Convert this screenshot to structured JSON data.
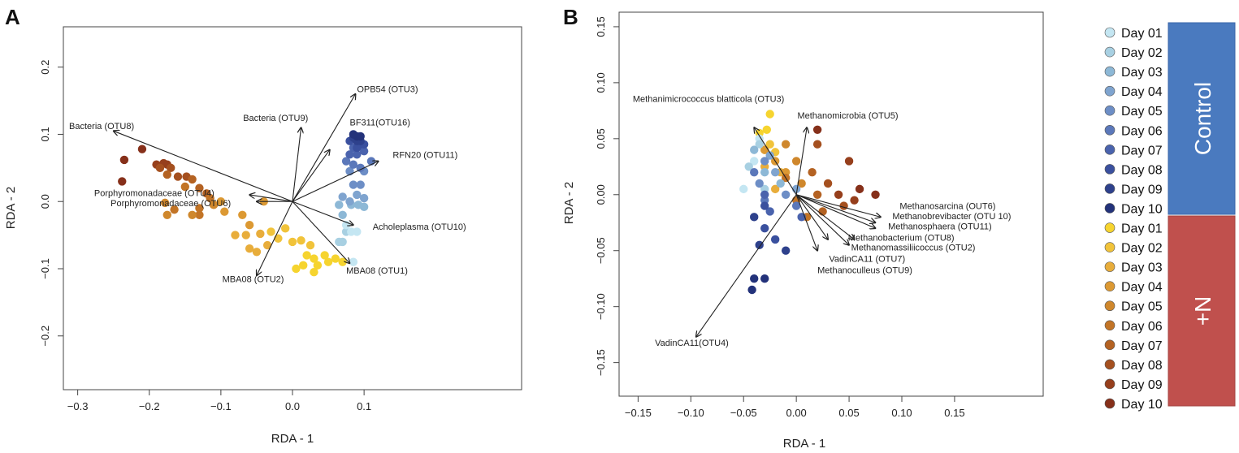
{
  "legend": {
    "days": [
      "Day 01",
      "Day 02",
      "Day 03",
      "Day 04",
      "Day 05",
      "Day 06",
      "Day 07",
      "Day 08",
      "Day 09",
      "Day 10",
      "Day 01",
      "Day 02",
      "Day 03",
      "Day 04",
      "Day 05",
      "Day 06",
      "Day 07",
      "Day 08",
      "Day 09",
      "Day 10"
    ],
    "colors": [
      "#c4e6f2",
      "#a8d0e2",
      "#8db8d6",
      "#7fa4cf",
      "#6d8ec6",
      "#5b78ba",
      "#4a63ad",
      "#3a509e",
      "#2e418c",
      "#23327a",
      "#f6d42f",
      "#f1c33a",
      "#e8ad3b",
      "#dc9933",
      "#cf872c",
      "#c27426",
      "#b46222",
      "#a5501f",
      "#963f1c",
      "#86301a"
    ],
    "groups": [
      {
        "label": "Control",
        "color": "#4a7abf"
      },
      {
        "label": "+N",
        "color": "#c0504d"
      }
    ]
  },
  "chart_data": [
    {
      "panel": "A",
      "type": "scatter",
      "xlabel": "RDA - 1",
      "ylabel": "RDA - 2",
      "xlim": [
        -0.32,
        0.32
      ],
      "ylim": [
        -0.28,
        0.26
      ],
      "xticks": [
        -0.3,
        -0.2,
        -0.1,
        0.0,
        0.1
      ],
      "xtick_labels": [
        "−0.3",
        "−0.2",
        "−0.1",
        "0.0",
        "0.1"
      ],
      "yticks": [
        -0.2,
        -0.1,
        0.0,
        0.1,
        0.2
      ],
      "ytick_labels": [
        "−0.2",
        "−0.1",
        "0.0",
        "0.1",
        "0.2"
      ],
      "arrows": [
        {
          "label": "Bacteria (OTU8)",
          "x": -0.25,
          "y": 0.105,
          "lx": -0.312,
          "ly": 0.108,
          "anchor": "start"
        },
        {
          "label": "Bacteria (OTU9)",
          "x": 0.012,
          "y": 0.11,
          "lx": -0.069,
          "ly": 0.12,
          "anchor": "start"
        },
        {
          "label": "OPB54 (OTU3)",
          "x": 0.088,
          "y": 0.16,
          "lx": 0.09,
          "ly": 0.163,
          "anchor": "start"
        },
        {
          "label": "BF311(OTU16)",
          "x": 0.052,
          "y": 0.077,
          "lx": 0.08,
          "ly": 0.113,
          "anchor": "start"
        },
        {
          "label": "RFN20 (OTU11)",
          "x": 0.12,
          "y": 0.06,
          "lx": 0.14,
          "ly": 0.065,
          "anchor": "start"
        },
        {
          "label": "Porphyromonadaceae (OTU4)",
          "x": -0.06,
          "y": 0.01,
          "lx": -0.277,
          "ly": 0.008,
          "anchor": "start"
        },
        {
          "label": "Porphyromonadaceae (OTU6)",
          "x": -0.05,
          "y": 0.0,
          "lx": -0.254,
          "ly": -0.007,
          "anchor": "start"
        },
        {
          "label": "Acholeplasma (OTU10)",
          "x": 0.085,
          "y": -0.035,
          "lx": 0.112,
          "ly": -0.042,
          "anchor": "start"
        },
        {
          "label": "MBA08 (OTU2)",
          "x": -0.05,
          "y": -0.11,
          "lx": -0.098,
          "ly": -0.12,
          "anchor": "start"
        },
        {
          "label": "MBA08 (OTU1)",
          "x": 0.08,
          "y": -0.092,
          "lx": 0.075,
          "ly": -0.107,
          "anchor": "start"
        }
      ],
      "points": [
        [
          -0.235,
          0.062,
          19
        ],
        [
          -0.21,
          0.078,
          19
        ],
        [
          -0.238,
          0.03,
          19
        ],
        [
          -0.19,
          0.055,
          18
        ],
        [
          -0.18,
          0.057,
          18
        ],
        [
          -0.175,
          0.055,
          18
        ],
        [
          -0.185,
          0.05,
          17
        ],
        [
          -0.17,
          0.05,
          17
        ],
        [
          -0.16,
          0.037,
          17
        ],
        [
          -0.148,
          0.037,
          17
        ],
        [
          -0.175,
          0.04,
          16
        ],
        [
          -0.14,
          0.033,
          16
        ],
        [
          -0.12,
          0.012,
          16
        ],
        [
          -0.13,
          0.02,
          16
        ],
        [
          -0.15,
          0.022,
          15
        ],
        [
          -0.115,
          0.005,
          15
        ],
        [
          -0.13,
          -0.01,
          15
        ],
        [
          -0.13,
          -0.02,
          15
        ],
        [
          -0.165,
          -0.012,
          15
        ],
        [
          -0.178,
          -0.002,
          14
        ],
        [
          -0.175,
          -0.02,
          14
        ],
        [
          -0.14,
          -0.02,
          14
        ],
        [
          -0.11,
          -0.005,
          14
        ],
        [
          -0.1,
          0.0,
          13
        ],
        [
          -0.095,
          -0.015,
          13
        ],
        [
          -0.07,
          -0.02,
          13
        ],
        [
          -0.06,
          -0.035,
          13
        ],
        [
          -0.04,
          0.0,
          13
        ],
        [
          -0.08,
          -0.05,
          12
        ],
        [
          -0.065,
          -0.05,
          12
        ],
        [
          -0.045,
          -0.048,
          12
        ],
        [
          -0.06,
          -0.07,
          12
        ],
        [
          -0.05,
          -0.075,
          12
        ],
        [
          -0.035,
          -0.065,
          12
        ],
        [
          -0.03,
          -0.045,
          11
        ],
        [
          -0.02,
          -0.055,
          11
        ],
        [
          -0.01,
          -0.04,
          11
        ],
        [
          0.0,
          -0.06,
          11
        ],
        [
          0.012,
          -0.058,
          11
        ],
        [
          0.025,
          -0.065,
          11
        ],
        [
          0.02,
          -0.08,
          10
        ],
        [
          0.03,
          -0.085,
          10
        ],
        [
          0.045,
          -0.08,
          10
        ],
        [
          0.05,
          -0.09,
          10
        ],
        [
          0.06,
          -0.085,
          10
        ],
        [
          0.07,
          -0.09,
          10
        ],
        [
          0.035,
          -0.095,
          10
        ],
        [
          0.015,
          -0.095,
          10
        ],
        [
          0.005,
          -0.1,
          10
        ],
        [
          0.03,
          -0.105,
          10
        ],
        [
          0.065,
          -0.06,
          1
        ],
        [
          0.075,
          -0.045,
          1
        ],
        [
          0.07,
          -0.06,
          1
        ],
        [
          0.075,
          -0.035,
          0
        ],
        [
          0.082,
          -0.045,
          0
        ],
        [
          0.09,
          -0.045,
          0
        ],
        [
          0.085,
          -0.09,
          0
        ],
        [
          0.065,
          -0.005,
          2
        ],
        [
          0.07,
          -0.02,
          2
        ],
        [
          0.082,
          -0.005,
          2
        ],
        [
          0.092,
          -0.005,
          2
        ],
        [
          0.1,
          -0.008,
          2
        ],
        [
          0.07,
          0.007,
          3
        ],
        [
          0.08,
          0.0,
          3
        ],
        [
          0.09,
          0.01,
          3
        ],
        [
          0.1,
          0.005,
          3
        ],
        [
          0.085,
          0.025,
          4
        ],
        [
          0.095,
          0.025,
          4
        ],
        [
          0.08,
          0.045,
          4
        ],
        [
          0.1,
          0.045,
          4
        ],
        [
          0.085,
          0.055,
          5
        ],
        [
          0.095,
          0.05,
          5
        ],
        [
          0.11,
          0.06,
          5
        ],
        [
          0.075,
          0.06,
          5
        ],
        [
          0.08,
          0.07,
          6
        ],
        [
          0.09,
          0.07,
          6
        ],
        [
          0.1,
          0.075,
          6
        ],
        [
          0.085,
          0.08,
          6
        ],
        [
          0.09,
          0.08,
          7
        ],
        [
          0.095,
          0.085,
          7
        ],
        [
          0.1,
          0.085,
          7
        ],
        [
          0.08,
          0.09,
          7
        ],
        [
          0.085,
          0.095,
          8
        ],
        [
          0.09,
          0.09,
          8
        ],
        [
          0.095,
          0.09,
          8
        ],
        [
          0.09,
          0.097,
          9
        ],
        [
          0.095,
          0.097,
          9
        ],
        [
          0.085,
          0.1,
          9
        ]
      ]
    },
    {
      "panel": "B",
      "type": "scatter",
      "xlabel": "RDA - 1",
      "ylabel": "RDA - 2",
      "xlim": [
        -0.168,
        0.234
      ],
      "ylim": [
        -0.18,
        0.163
      ],
      "xticks": [
        -0.15,
        -0.1,
        -0.05,
        0.0,
        0.05,
        0.1,
        0.15
      ],
      "xtick_labels": [
        "−0.15",
        "−0.10",
        "−0.05",
        "0.00",
        "0.05",
        "0.10",
        "0.15"
      ],
      "yticks": [
        -0.15,
        -0.1,
        -0.05,
        0.0,
        0.05,
        0.1,
        0.15
      ],
      "ytick_labels": [
        "−0.15",
        "−0.10",
        "−0.05",
        "0.00",
        "0.05",
        "0.10",
        "0.15"
      ],
      "arrows": [
        {
          "label": "Methanimicrococcus blatticola (OTU3)",
          "x": -0.04,
          "y": 0.06,
          "lx": -0.155,
          "ly": 0.083,
          "anchor": "start"
        },
        {
          "label": "Methanomicrobia (OTU5)",
          "x": 0.01,
          "y": 0.06,
          "lx": 0.001,
          "ly": 0.068,
          "anchor": "start"
        },
        {
          "label": "Methanosarcina (OUT6)",
          "x": 0.08,
          "y": -0.02,
          "lx": 0.098,
          "ly": -0.013,
          "anchor": "start"
        },
        {
          "label": "Methanobrevibacter (OTU 10)",
          "x": 0.075,
          "y": -0.025,
          "lx": 0.091,
          "ly": -0.022,
          "anchor": "start"
        },
        {
          "label": "Methanosphaera (OTU11)",
          "x": 0.075,
          "y": -0.03,
          "lx": 0.087,
          "ly": -0.031,
          "anchor": "start"
        },
        {
          "label": "Methanobacterium (OTU8)",
          "x": 0.055,
          "y": -0.04,
          "lx": 0.049,
          "ly": -0.041,
          "anchor": "start"
        },
        {
          "label": "Methanomassiliicoccus (OTU2)",
          "x": 0.05,
          "y": -0.045,
          "lx": 0.052,
          "ly": -0.05,
          "anchor": "start"
        },
        {
          "label": "VadinCA11 (OTU7)",
          "x": 0.03,
          "y": -0.04,
          "lx": 0.031,
          "ly": -0.06,
          "anchor": "start"
        },
        {
          "label": "Methanoculleus (OTU9)",
          "x": 0.02,
          "y": -0.05,
          "lx": 0.02,
          "ly": -0.07,
          "anchor": "start"
        },
        {
          "label": "VadinCA11(OTU4)",
          "x": -0.095,
          "y": -0.127,
          "lx": -0.134,
          "ly": -0.135,
          "anchor": "start"
        }
      ],
      "points": [
        [
          -0.025,
          0.072,
          10
        ],
        [
          -0.028,
          0.058,
          10
        ],
        [
          -0.035,
          0.055,
          10
        ],
        [
          -0.025,
          0.045,
          11
        ],
        [
          -0.03,
          0.04,
          11
        ],
        [
          -0.02,
          0.038,
          11
        ],
        [
          -0.03,
          0.025,
          12
        ],
        [
          -0.015,
          0.02,
          12
        ],
        [
          -0.02,
          0.005,
          12
        ],
        [
          -0.03,
          0.04,
          13
        ],
        [
          -0.02,
          0.03,
          13
        ],
        [
          -0.01,
          0.02,
          13
        ],
        [
          -0.01,
          0.045,
          14
        ],
        [
          0.0,
          0.03,
          14
        ],
        [
          0.005,
          0.01,
          14
        ],
        [
          -0.01,
          0.015,
          15
        ],
        [
          0.0,
          -0.005,
          15
        ],
        [
          0.01,
          -0.02,
          15
        ],
        [
          0.015,
          0.02,
          16
        ],
        [
          0.02,
          0.0,
          16
        ],
        [
          0.025,
          -0.015,
          16
        ],
        [
          0.02,
          0.045,
          17
        ],
        [
          0.03,
          0.01,
          17
        ],
        [
          0.045,
          -0.01,
          17
        ],
        [
          0.05,
          0.03,
          18
        ],
        [
          0.04,
          0.0,
          18
        ],
        [
          0.055,
          -0.005,
          18
        ],
        [
          0.02,
          0.058,
          19
        ],
        [
          0.06,
          0.005,
          19
        ],
        [
          0.075,
          0.0,
          19
        ],
        [
          -0.035,
          0.05,
          0
        ],
        [
          -0.04,
          0.03,
          0
        ],
        [
          -0.05,
          0.005,
          0
        ],
        [
          -0.035,
          0.045,
          1
        ],
        [
          -0.045,
          0.025,
          1
        ],
        [
          -0.03,
          0.005,
          1
        ],
        [
          -0.04,
          0.04,
          2
        ],
        [
          -0.03,
          0.02,
          2
        ],
        [
          -0.015,
          0.01,
          2
        ],
        [
          -0.025,
          0.035,
          3
        ],
        [
          -0.02,
          0.02,
          3
        ],
        [
          0.0,
          0.005,
          3
        ],
        [
          -0.03,
          0.03,
          4
        ],
        [
          -0.035,
          0.01,
          4
        ],
        [
          -0.01,
          0.0,
          4
        ],
        [
          -0.04,
          0.02,
          5
        ],
        [
          -0.03,
          -0.005,
          5
        ],
        [
          0.0,
          -0.01,
          5
        ],
        [
          -0.03,
          0.0,
          6
        ],
        [
          -0.025,
          -0.015,
          6
        ],
        [
          0.005,
          -0.02,
          6
        ],
        [
          -0.03,
          -0.01,
          7
        ],
        [
          -0.03,
          -0.03,
          7
        ],
        [
          -0.02,
          -0.04,
          7
        ],
        [
          -0.04,
          -0.02,
          8
        ],
        [
          -0.035,
          -0.045,
          8
        ],
        [
          -0.01,
          -0.05,
          8
        ],
        [
          -0.04,
          -0.075,
          9
        ],
        [
          -0.042,
          -0.085,
          9
        ],
        [
          -0.03,
          -0.075,
          9
        ]
      ]
    }
  ]
}
